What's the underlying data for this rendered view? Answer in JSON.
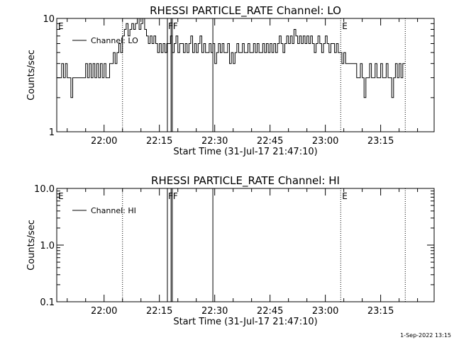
{
  "footer": {
    "timestamp": "1-Sep-2022 13:15"
  },
  "chart_data": [
    {
      "type": "line",
      "title": "RHESSI PARTICLE_RATE Channel: LO",
      "xlabel": "Start Time (31-Jul-17 21:47:10)",
      "ylabel": "Counts/sec",
      "yscale": "log",
      "ylim": [
        1,
        10
      ],
      "xlim": [
        "21:47:10",
        "23:29:30"
      ],
      "x_ticks": [
        "22:00",
        "22:15",
        "22:30",
        "22:45",
        "23:00",
        "23:15"
      ],
      "y_ticks": [
        "1",
        "10"
      ],
      "grid": false,
      "legend": {
        "position": "top-left",
        "entries": [
          "Channel: LO"
        ]
      },
      "markers": [
        {
          "label": "E",
          "time": "21:47:10",
          "style": "dotted"
        },
        {
          "label": "",
          "time": "22:05:00",
          "style": "dotted"
        },
        {
          "label": "F",
          "time": "22:17:10",
          "style": "solid"
        },
        {
          "label": "F",
          "time": "22:18:30",
          "style": "solid"
        },
        {
          "label": "",
          "time": "22:18:10",
          "style": "solid"
        },
        {
          "label": "",
          "time": "22:29:30",
          "style": "solid"
        },
        {
          "label": "E",
          "time": "23:04:10",
          "style": "dotted"
        },
        {
          "label": "",
          "time": "23:21:40",
          "style": "dotted"
        }
      ],
      "series": [
        {
          "name": "Channel: LO",
          "points": [
            [
              "21:47:10",
              3
            ],
            [
              "21:48:00",
              3
            ],
            [
              "21:48:30",
              4
            ],
            [
              "21:49:00",
              3
            ],
            [
              "21:49:30",
              4
            ],
            [
              "21:50:00",
              3
            ],
            [
              "21:50:30",
              3
            ],
            [
              "21:51:00",
              2
            ],
            [
              "21:51:30",
              3
            ],
            [
              "21:52:00",
              3
            ],
            [
              "21:53:00",
              3
            ],
            [
              "21:54:00",
              3
            ],
            [
              "21:55:00",
              4
            ],
            [
              "21:55:30",
              3
            ],
            [
              "21:56:00",
              4
            ],
            [
              "21:56:30",
              3
            ],
            [
              "21:57:00",
              4
            ],
            [
              "21:57:30",
              3
            ],
            [
              "21:58:00",
              4
            ],
            [
              "21:58:30",
              3
            ],
            [
              "21:59:00",
              4
            ],
            [
              "21:59:30",
              3
            ],
            [
              "22:00:00",
              4
            ],
            [
              "22:00:30",
              3
            ],
            [
              "22:01:00",
              3
            ],
            [
              "22:01:30",
              4
            ],
            [
              "22:02:00",
              4
            ],
            [
              "22:02:30",
              5
            ],
            [
              "22:03:00",
              4
            ],
            [
              "22:03:30",
              5
            ],
            [
              "22:04:00",
              6
            ],
            [
              "22:04:30",
              5
            ],
            [
              "22:05:00",
              7
            ],
            [
              "22:05:30",
              8
            ],
            [
              "22:06:00",
              9
            ],
            [
              "22:06:30",
              7
            ],
            [
              "22:07:00",
              8
            ],
            [
              "22:07:30",
              9
            ],
            [
              "22:08:00",
              8
            ],
            [
              "22:08:30",
              9
            ],
            [
              "22:09:00",
              10
            ],
            [
              "22:09:30",
              8
            ],
            [
              "22:10:00",
              9
            ],
            [
              "22:10:30",
              10
            ],
            [
              "22:11:00",
              8
            ],
            [
              "22:11:30",
              7
            ],
            [
              "22:12:00",
              6
            ],
            [
              "22:12:30",
              7
            ],
            [
              "22:13:00",
              6
            ],
            [
              "22:13:30",
              7
            ],
            [
              "22:14:00",
              6
            ],
            [
              "22:14:30",
              5
            ],
            [
              "22:15:00",
              6
            ],
            [
              "22:15:30",
              5
            ],
            [
              "22:16:00",
              6
            ],
            [
              "22:16:30",
              5
            ],
            [
              "22:17:00",
              6
            ],
            [
              "22:17:30",
              6
            ],
            [
              "22:18:00",
              7
            ],
            [
              "22:18:30",
              5
            ],
            [
              "22:19:00",
              6
            ],
            [
              "22:19:30",
              7
            ],
            [
              "22:20:00",
              5
            ],
            [
              "22:20:30",
              6
            ],
            [
              "22:21:00",
              6
            ],
            [
              "22:21:30",
              5
            ],
            [
              "22:22:00",
              6
            ],
            [
              "22:22:30",
              5
            ],
            [
              "22:23:00",
              6
            ],
            [
              "22:23:30",
              7
            ],
            [
              "22:24:00",
              5
            ],
            [
              "22:24:30",
              6
            ],
            [
              "22:25:00",
              5
            ],
            [
              "22:25:30",
              6
            ],
            [
              "22:26:00",
              7
            ],
            [
              "22:26:30",
              5
            ],
            [
              "22:27:00",
              6
            ],
            [
              "22:27:30",
              5
            ],
            [
              "22:28:00",
              5
            ],
            [
              "22:28:30",
              6
            ],
            [
              "22:29:00",
              5
            ],
            [
              "22:29:30",
              6
            ],
            [
              "22:30:00",
              4
            ],
            [
              "22:30:30",
              5
            ],
            [
              "22:31:00",
              6
            ],
            [
              "22:31:30",
              5
            ],
            [
              "22:32:00",
              6
            ],
            [
              "22:32:30",
              5
            ],
            [
              "22:33:00",
              5
            ],
            [
              "22:33:30",
              6
            ],
            [
              "22:34:00",
              4
            ],
            [
              "22:34:30",
              5
            ],
            [
              "22:35:00",
              4
            ],
            [
              "22:35:30",
              5
            ],
            [
              "22:36:00",
              6
            ],
            [
              "22:36:30",
              5
            ],
            [
              "22:37:00",
              5
            ],
            [
              "22:37:30",
              6
            ],
            [
              "22:38:00",
              5
            ],
            [
              "22:38:30",
              5
            ],
            [
              "22:39:00",
              6
            ],
            [
              "22:39:30",
              5
            ],
            [
              "22:40:00",
              5
            ],
            [
              "22:40:30",
              6
            ],
            [
              "22:41:00",
              5
            ],
            [
              "22:41:30",
              6
            ],
            [
              "22:42:00",
              5
            ],
            [
              "22:42:30",
              5
            ],
            [
              "22:43:00",
              6
            ],
            [
              "22:43:30",
              5
            ],
            [
              "22:44:00",
              6
            ],
            [
              "22:44:30",
              5
            ],
            [
              "22:45:00",
              6
            ],
            [
              "22:45:30",
              5
            ],
            [
              "22:46:00",
              6
            ],
            [
              "22:46:30",
              5
            ],
            [
              "22:47:00",
              6
            ],
            [
              "22:47:30",
              7
            ],
            [
              "22:48:00",
              6
            ],
            [
              "22:48:30",
              5
            ],
            [
              "22:49:00",
              6
            ],
            [
              "22:49:30",
              7
            ],
            [
              "22:50:00",
              6
            ],
            [
              "22:50:30",
              7
            ],
            [
              "22:51:00",
              6
            ],
            [
              "22:51:30",
              8
            ],
            [
              "22:52:00",
              7
            ],
            [
              "22:52:30",
              6
            ],
            [
              "22:53:00",
              7
            ],
            [
              "22:53:30",
              6
            ],
            [
              "22:54:00",
              7
            ],
            [
              "22:54:30",
              6
            ],
            [
              "22:55:00",
              7
            ],
            [
              "22:55:30",
              6
            ],
            [
              "22:56:00",
              7
            ],
            [
              "22:56:30",
              6
            ],
            [
              "22:57:00",
              5
            ],
            [
              "22:57:30",
              6
            ],
            [
              "22:58:00",
              7
            ],
            [
              "22:58:30",
              6
            ],
            [
              "22:59:00",
              5
            ],
            [
              "22:59:30",
              6
            ],
            [
              "23:00:00",
              7
            ],
            [
              "23:00:30",
              6
            ],
            [
              "23:01:00",
              5
            ],
            [
              "23:01:30",
              6
            ],
            [
              "23:02:00",
              6
            ],
            [
              "23:02:30",
              5
            ],
            [
              "23:03:00",
              6
            ],
            [
              "23:03:30",
              5
            ],
            [
              "23:04:00",
              5
            ],
            [
              "23:04:30",
              4
            ],
            [
              "23:05:00",
              5
            ],
            [
              "23:05:30",
              4
            ],
            [
              "23:06:00",
              4
            ],
            [
              "23:07:00",
              4
            ],
            [
              "23:08:00",
              4
            ],
            [
              "23:08:30",
              3
            ],
            [
              "23:09:00",
              3
            ],
            [
              "23:09:30",
              4
            ],
            [
              "23:10:00",
              3
            ],
            [
              "23:10:30",
              2
            ],
            [
              "23:11:00",
              3
            ],
            [
              "23:11:30",
              3
            ],
            [
              "23:12:00",
              4
            ],
            [
              "23:12:30",
              3
            ],
            [
              "23:13:00",
              3
            ],
            [
              "23:13:30",
              4
            ],
            [
              "23:14:00",
              3
            ],
            [
              "23:14:30",
              3
            ],
            [
              "23:15:00",
              4
            ],
            [
              "23:15:30",
              3
            ],
            [
              "23:16:00",
              3
            ],
            [
              "23:16:30",
              4
            ],
            [
              "23:17:00",
              3
            ],
            [
              "23:17:30",
              3
            ],
            [
              "23:18:00",
              2
            ],
            [
              "23:18:30",
              3
            ],
            [
              "23:19:00",
              4
            ],
            [
              "23:19:30",
              3
            ],
            [
              "23:20:00",
              4
            ],
            [
              "23:20:30",
              3
            ],
            [
              "23:21:00",
              4
            ],
            [
              "23:21:40",
              4
            ]
          ]
        }
      ]
    },
    {
      "type": "line",
      "title": "RHESSI PARTICLE_RATE Channel: HI",
      "xlabel": "Start Time (31-Jul-17 21:47:10)",
      "ylabel": "Counts/sec",
      "yscale": "log",
      "ylim": [
        0.1,
        10
      ],
      "xlim": [
        "21:47:10",
        "23:29:30"
      ],
      "x_ticks": [
        "22:00",
        "22:15",
        "22:30",
        "22:45",
        "23:00",
        "23:15"
      ],
      "y_ticks": [
        "0.1",
        "1.0",
        "10.0"
      ],
      "grid": false,
      "legend": {
        "position": "top-left",
        "entries": [
          "Channel: HI"
        ]
      },
      "markers": [
        {
          "label": "E",
          "time": "21:47:10",
          "style": "dotted"
        },
        {
          "label": "",
          "time": "22:05:00",
          "style": "dotted"
        },
        {
          "label": "F",
          "time": "22:17:10",
          "style": "solid"
        },
        {
          "label": "F",
          "time": "22:18:30",
          "style": "solid"
        },
        {
          "label": "",
          "time": "22:18:10",
          "style": "solid"
        },
        {
          "label": "",
          "time": "22:29:30",
          "style": "solid"
        },
        {
          "label": "E",
          "time": "23:04:10",
          "style": "dotted"
        },
        {
          "label": "",
          "time": "23:21:40",
          "style": "dotted"
        }
      ],
      "series": [
        {
          "name": "Channel: HI",
          "points": []
        }
      ]
    }
  ]
}
